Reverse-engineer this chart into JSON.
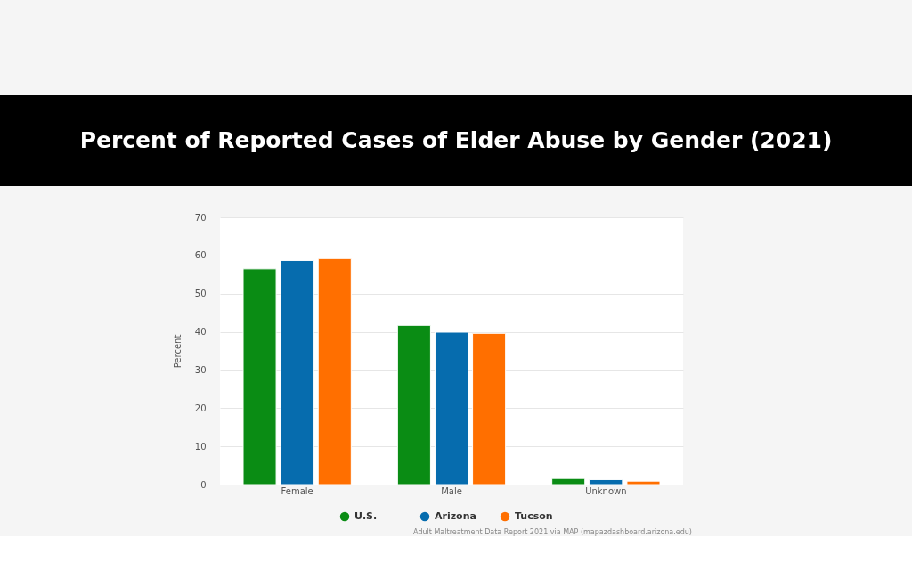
{
  "chart_data": {
    "type": "bar",
    "title": "Percent of Reported Cases of Elder Abuse by Gender (2021)",
    "ylabel": "Percent",
    "categories": [
      "Female",
      "Male",
      "Unknown"
    ],
    "series": [
      {
        "name": "U.S.",
        "color": "#0a8c14",
        "values": [
          56.5,
          41.7,
          1.6
        ]
      },
      {
        "name": "Arizona",
        "color": "#066cae",
        "values": [
          58.7,
          39.9,
          1.3
        ]
      },
      {
        "name": "Tucson",
        "color": "#ff6f00",
        "values": [
          59.2,
          39.6,
          0.9
        ]
      }
    ],
    "ylim": [
      0,
      70
    ],
    "yticks": [
      0,
      10,
      20,
      30,
      40,
      50,
      60,
      70
    ],
    "grid": "y",
    "legend": "bottom",
    "annotations": [
      "Adult Maltreatment Data Report 2021 via MAP (mapazdashboard.arizona.edu)"
    ]
  }
}
